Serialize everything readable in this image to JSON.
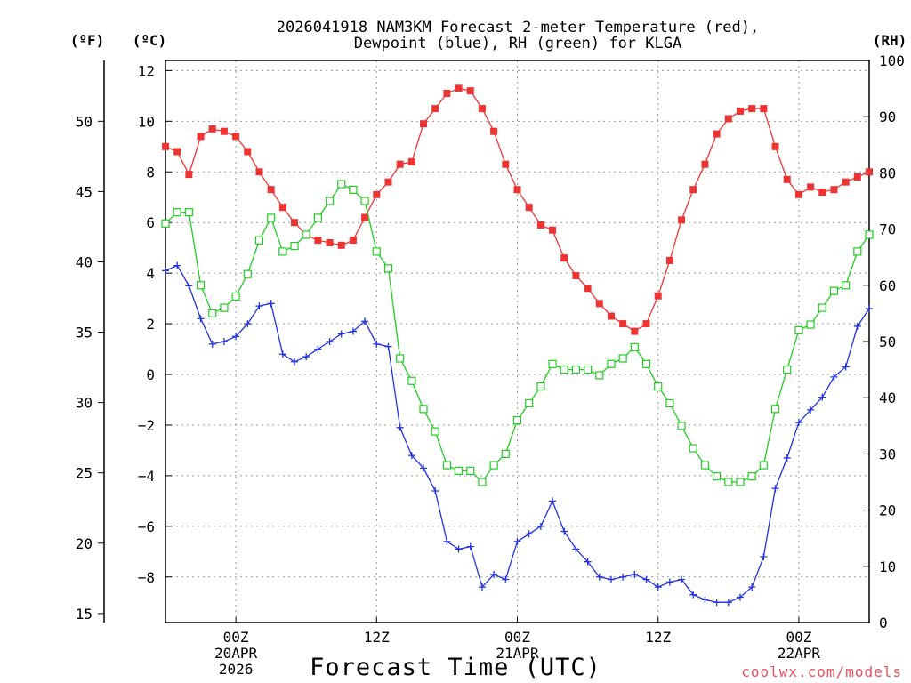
{
  "chart_data": {
    "type": "line",
    "title_lines": [
      "2026041918 NAM3KM Forecast 2-meter Temperature (red),",
      "Dewpoint (blue), RH (green) for KLGA"
    ],
    "xlabel": "Forecast Time (UTC)",
    "credit": "coolwx.com/models",
    "unit_labels": {
      "fahrenheit": "(ºF)",
      "celsius": "(ºC)",
      "rh": "(RH)"
    },
    "x_range_hours": [
      0,
      60
    ],
    "x_ticks": [
      {
        "hour": 6,
        "lines": [
          "00Z",
          "20APR",
          "2026"
        ]
      },
      {
        "hour": 18,
        "lines": [
          "12Z"
        ]
      },
      {
        "hour": 30,
        "lines": [
          "00Z",
          "21APR"
        ]
      },
      {
        "hour": 42,
        "lines": [
          "12Z"
        ]
      },
      {
        "hour": 54,
        "lines": [
          "00Z",
          "22APR"
        ]
      }
    ],
    "celsius_axis": {
      "range": [
        -9.8,
        12.4
      ],
      "ticks": [
        12,
        10,
        8,
        6,
        4,
        2,
        0,
        -2,
        -4,
        -6,
        -8
      ]
    },
    "fahrenheit_axis": {
      "ticks": [
        50,
        45,
        40,
        35,
        30,
        25,
        20,
        15
      ]
    },
    "rh_axis": {
      "range": [
        0,
        100
      ],
      "ticks": [
        100,
        90,
        80,
        70,
        60,
        50,
        40,
        30,
        20,
        10,
        0
      ]
    },
    "series": [
      {
        "name": "2-meter Temperature",
        "unit": "C",
        "color": "#ee3333",
        "marker": "filled-square",
        "values": [
          9.0,
          8.8,
          7.9,
          9.4,
          9.7,
          9.6,
          9.4,
          8.8,
          8.0,
          7.3,
          6.6,
          6.0,
          5.5,
          5.3,
          5.2,
          5.1,
          5.3,
          6.2,
          7.1,
          7.6,
          8.3,
          8.4,
          9.9,
          10.5,
          11.1,
          11.3,
          11.2,
          10.5,
          9.6,
          8.3,
          7.3,
          6.6,
          5.9,
          5.7,
          4.6,
          3.9,
          3.4,
          2.8,
          2.3,
          2.0,
          1.7,
          2.0,
          3.1,
          4.5,
          6.1,
          7.3,
          8.3,
          9.5,
          10.1,
          10.4,
          10.5,
          10.5,
          9.0,
          7.7,
          7.1,
          7.4,
          7.2,
          7.3,
          7.6,
          7.8,
          8.0
        ]
      },
      {
        "name": "Dewpoint",
        "unit": "C",
        "color": "#2233dd",
        "marker": "plus",
        "values": [
          4.1,
          4.3,
          3.5,
          2.2,
          1.2,
          1.3,
          1.5,
          2.0,
          2.7,
          2.8,
          0.8,
          0.5,
          0.7,
          1.0,
          1.3,
          1.6,
          1.7,
          2.1,
          1.2,
          1.1,
          -2.1,
          -3.2,
          -3.7,
          -4.6,
          -6.6,
          -6.9,
          -6.8,
          -8.4,
          -7.9,
          -8.1,
          -6.6,
          -6.3,
          -6.0,
          -5.0,
          -6.2,
          -6.9,
          -7.4,
          -8.0,
          -8.1,
          -8.0,
          -7.9,
          -8.1,
          -8.4,
          -8.2,
          -8.1,
          -8.7,
          -8.9,
          -9.0,
          -9.0,
          -8.8,
          -8.4,
          -7.2,
          -4.5,
          -3.3,
          -1.9,
          -1.4,
          -0.9,
          -0.1,
          0.3,
          1.9,
          2.6
        ]
      },
      {
        "name": "RH",
        "unit": "%",
        "color": "#22cc22",
        "marker": "open-square",
        "values": [
          71,
          73,
          73,
          60,
          55,
          56,
          58,
          62,
          68,
          72,
          66,
          67,
          69,
          72,
          75,
          78,
          77,
          75,
          66,
          63,
          47,
          43,
          38,
          34,
          28,
          27,
          27,
          25,
          28,
          30,
          36,
          39,
          42,
          46,
          45,
          45,
          45,
          44,
          46,
          47,
          49,
          46,
          42,
          39,
          35,
          31,
          28,
          26,
          25,
          25,
          26,
          28,
          38,
          45,
          52,
          53,
          56,
          59,
          60,
          66,
          69
        ]
      }
    ]
  }
}
